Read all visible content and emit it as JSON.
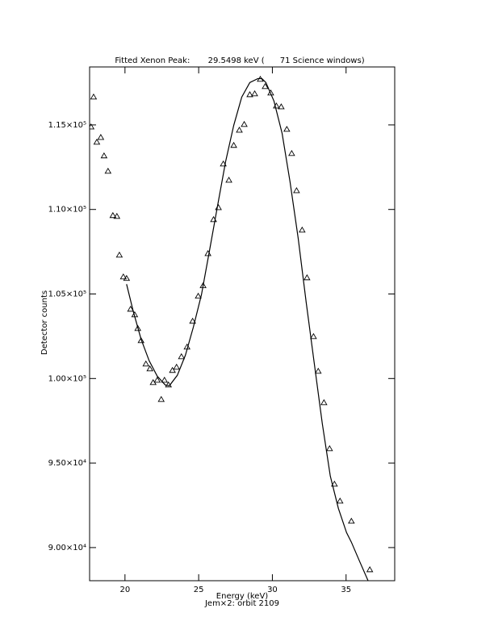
{
  "chart_data": {
    "type": "scatter",
    "title": "Fitted Xenon Peak:       29.5498 keV (      71 Science windows)",
    "xlabel": "Energy (keV)",
    "subtitle": "Jem×2: orbit 2109",
    "ylabel": "Detector counts",
    "xlim": [
      17.6,
      38.3
    ],
    "ylim": [
      88040,
      118430
    ],
    "xticks": [
      20,
      25,
      30,
      35
    ],
    "yticks": [
      {
        "value": 90000,
        "label": "9.00×10⁴"
      },
      {
        "value": 95000,
        "label": "9.50×10⁴"
      },
      {
        "value": 100000,
        "label": "1.00×10⁵"
      },
      {
        "value": 105000,
        "label": "1.05×10⁵"
      },
      {
        "value": 110000,
        "label": "1.10×10⁵"
      },
      {
        "value": 115000,
        "label": "1.15×10⁵"
      }
    ],
    "series": [
      {
        "mode": "markers",
        "color": "#000000",
        "x": [
          17.7,
          17.87,
          18.09,
          18.36,
          18.58,
          18.85,
          19.18,
          19.45,
          19.62,
          19.89,
          20.11,
          20.38,
          20.66,
          20.87,
          21.09,
          21.42,
          21.69,
          21.91,
          22.19,
          22.46,
          22.68,
          22.95,
          23.22,
          23.5,
          23.83,
          24.21,
          24.59,
          24.97,
          25.3,
          25.63,
          26.01,
          26.34,
          26.67,
          27.05,
          27.38,
          27.76,
          28.09,
          28.47,
          28.8,
          29.18,
          29.51,
          29.89,
          30.27,
          30.6,
          30.98,
          31.31,
          31.64,
          32.02,
          32.35,
          32.79,
          33.11,
          33.5,
          33.88,
          34.21,
          34.59,
          35.36,
          36.61
        ],
        "values": [
          114880,
          116650,
          113980,
          114260,
          113170,
          112260,
          109640,
          109590,
          107300,
          106010,
          105920,
          104100,
          103770,
          102960,
          102240,
          100860,
          100570,
          99760,
          99900,
          98760,
          99900,
          99620,
          100480,
          100670,
          101290,
          101860,
          103390,
          104870,
          105490,
          107390,
          109400,
          110110,
          112690,
          111730,
          113790,
          114690,
          115030,
          116790,
          116840,
          117700,
          117270,
          116890,
          116120,
          116070,
          114740,
          113310,
          111110,
          108780,
          105960,
          102480,
          100430,
          98570,
          95850,
          93750,
          92750,
          91560,
          88690
        ]
      },
      {
        "mode": "line",
        "color": "#000000",
        "x": [
          20.11,
          20.55,
          21.09,
          21.64,
          22.19,
          22.73,
          23.01,
          23.55,
          24.1,
          24.64,
          25.19,
          25.74,
          26.28,
          26.83,
          27.38,
          27.92,
          28.47,
          29.02,
          29.29,
          29.56,
          30.11,
          30.66,
          31.2,
          31.75,
          32.3,
          32.84,
          33.39,
          33.93,
          34.48,
          35.03,
          35.36,
          35.9,
          36.5
        ],
        "values": [
          105580,
          104010,
          102340,
          101050,
          100140,
          99620,
          99570,
          100190,
          101380,
          103050,
          104960,
          107580,
          110210,
          112830,
          114980,
          116650,
          117510,
          117740,
          117740,
          117510,
          116410,
          114500,
          111640,
          108300,
          104480,
          100910,
          97330,
          94230,
          92320,
          90890,
          90320,
          89220,
          88030
        ]
      }
    ]
  }
}
